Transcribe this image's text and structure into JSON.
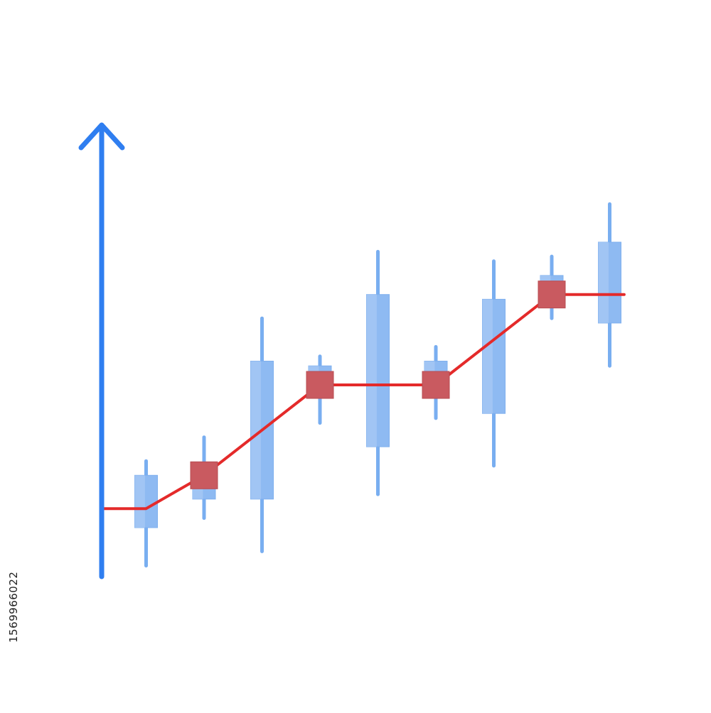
{
  "stock_id": "1569966022",
  "colors": {
    "axis": "#2f7ef0",
    "candle_fill": "#8ebaf2",
    "candle_edge": "#7fb0ee",
    "wick": "#79aef0",
    "line": "#e42a2a",
    "marker": "#c95a60"
  },
  "icons": {
    "axis_arrow": "up-arrow-icon"
  },
  "chart_data": {
    "type": "candlestick-with-line",
    "title": "",
    "xlabel": "",
    "ylabel": "",
    "grid": false,
    "legend": "none",
    "ylim": [
      0,
      100
    ],
    "candles": [
      {
        "x": 1,
        "low": 2,
        "open": 10,
        "close": 21,
        "high": 24
      },
      {
        "x": 2,
        "low": 12,
        "open": 16,
        "close": 23,
        "high": 29
      },
      {
        "x": 3,
        "low": 5,
        "open": 16,
        "close": 45,
        "high": 54
      },
      {
        "x": 4,
        "low": 32,
        "open": 38,
        "close": 44,
        "high": 46
      },
      {
        "x": 5,
        "low": 17,
        "open": 27,
        "close": 59,
        "high": 68
      },
      {
        "x": 6,
        "low": 33,
        "open": 39,
        "close": 45,
        "high": 48
      },
      {
        "x": 7,
        "low": 23,
        "open": 34,
        "close": 58,
        "high": 66
      },
      {
        "x": 8,
        "low": 54,
        "open": 58,
        "close": 63,
        "high": 67
      },
      {
        "x": 9,
        "low": 44,
        "open": 53,
        "close": 70,
        "high": 78
      }
    ],
    "line": {
      "x": [
        0.25,
        1,
        2,
        4,
        6,
        8,
        9.25
      ],
      "y": [
        14,
        14,
        21,
        40,
        40,
        59,
        59
      ]
    },
    "markers_x": [
      2,
      4,
      6,
      8
    ]
  }
}
